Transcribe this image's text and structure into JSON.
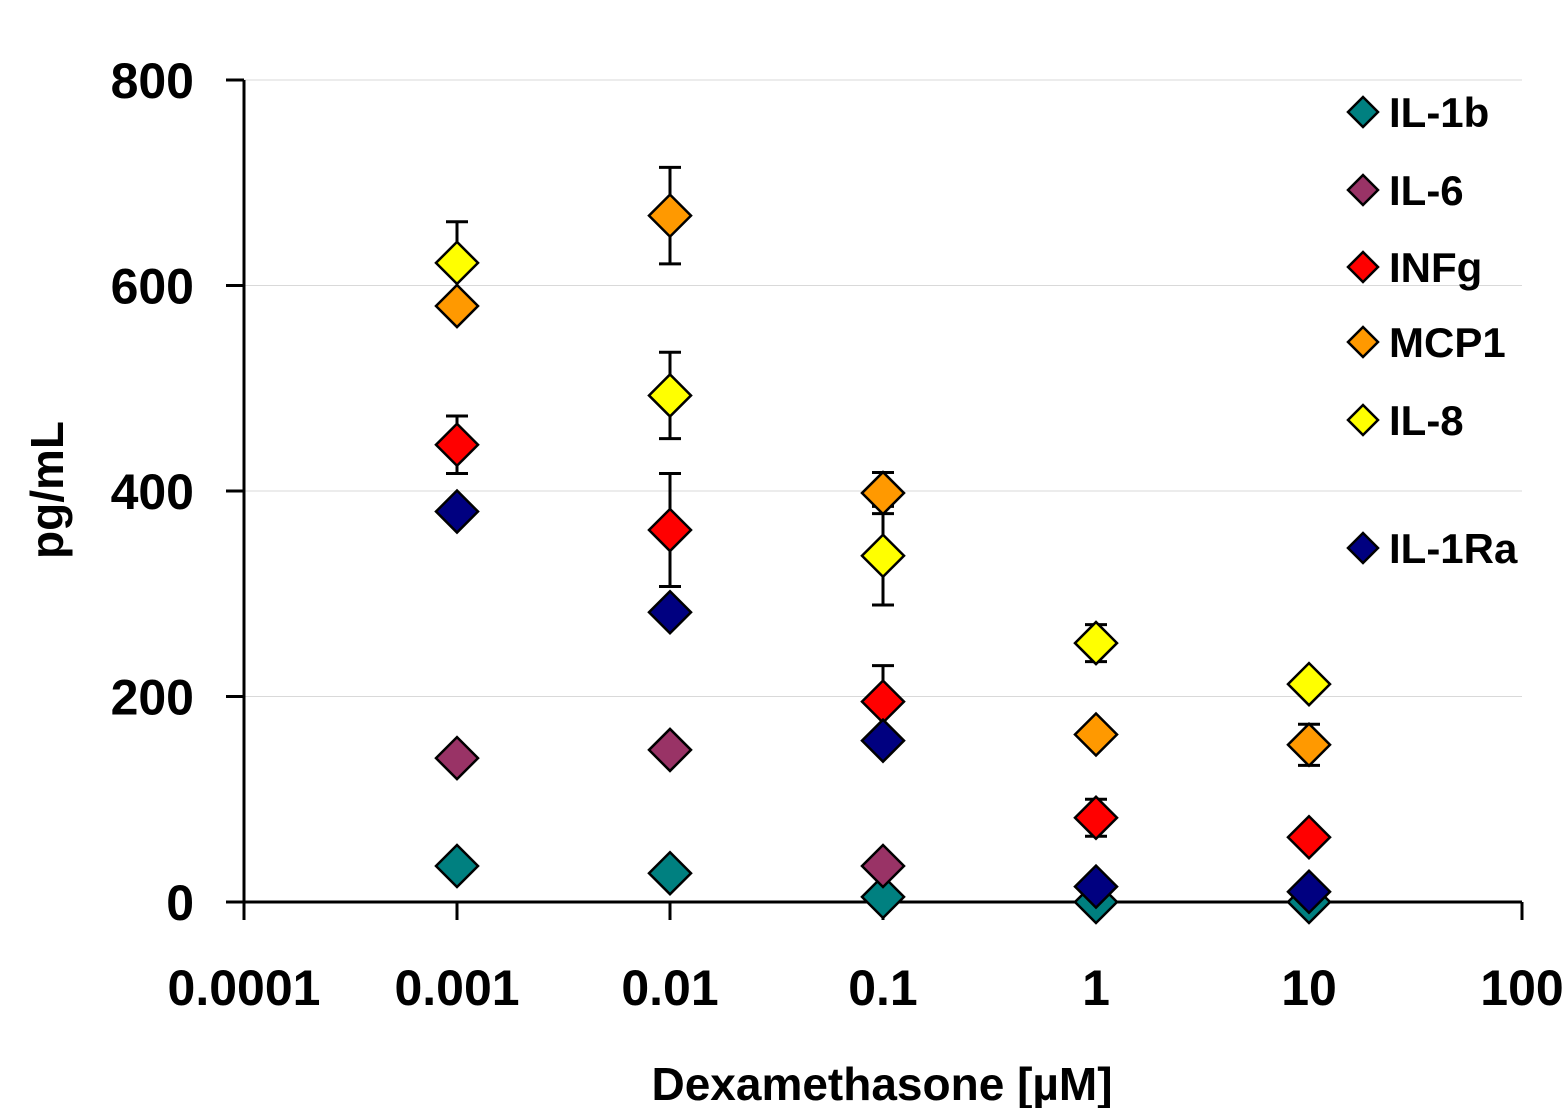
{
  "chart_data": {
    "type": "scatter",
    "xlabel": "Dexamethasone [µM]",
    "ylabel": "pg/mL",
    "xscale": "log",
    "xlim": [
      0.0001,
      100
    ],
    "ylim": [
      0,
      800
    ],
    "x_ticks": [
      0.0001,
      0.001,
      0.01,
      0.1,
      1,
      10,
      100
    ],
    "x_tick_labels": [
      "0.0001",
      "0.001",
      "0.01",
      "0.1",
      "1",
      "10",
      "100"
    ],
    "y_ticks": [
      0,
      200,
      400,
      600,
      800
    ],
    "y_tick_labels": [
      "0",
      "200",
      "400",
      "600",
      "800"
    ],
    "grid": "horizontal",
    "legend_position": "top-right",
    "x": [
      0.001,
      0.01,
      0.1,
      1,
      10
    ],
    "series": [
      {
        "name": "IL-1b",
        "color": "#008080",
        "values": [
          35,
          28,
          5,
          0,
          0
        ],
        "errors": [
          null,
          null,
          null,
          null,
          null
        ]
      },
      {
        "name": "IL-6",
        "color": "#993366",
        "values": [
          140,
          148,
          35,
          null,
          null
        ],
        "errors": [
          null,
          null,
          null,
          null,
          null
        ]
      },
      {
        "name": "INFg",
        "color": "#FF0000",
        "values": [
          445,
          362,
          195,
          82,
          63
        ],
        "errors": [
          28,
          55,
          35,
          18,
          null
        ]
      },
      {
        "name": "MCP1",
        "color": "#FF9900",
        "values": [
          580,
          668,
          398,
          163,
          153
        ],
        "errors": [
          null,
          47,
          20,
          null,
          20
        ]
      },
      {
        "name": "IL-8",
        "color": "#FFFF00",
        "values": [
          622,
          493,
          337,
          252,
          212
        ],
        "errors": [
          40,
          42,
          48,
          18,
          null
        ]
      },
      {
        "name": "IL-1Ra",
        "color": "#000080",
        "values": [
          380,
          282,
          157,
          15,
          10
        ],
        "errors": [
          null,
          null,
          null,
          null,
          null
        ]
      }
    ]
  }
}
